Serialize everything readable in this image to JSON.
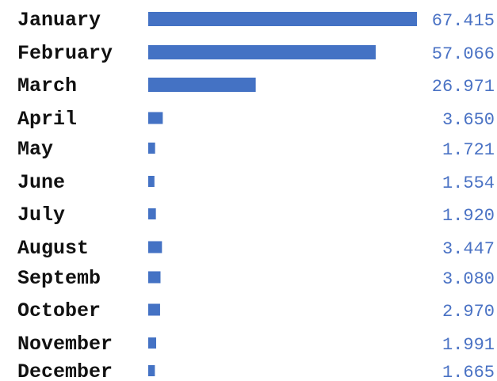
{
  "chart_data": {
    "type": "bar",
    "orientation": "horizontal",
    "categories": [
      "January",
      "February",
      "March",
      "April",
      "May",
      "June",
      "July",
      "August",
      "Septemb",
      "October",
      "November",
      "December"
    ],
    "values": [
      67.415,
      57.066,
      26.971,
      3.65,
      1.721,
      1.554,
      1.92,
      3.447,
      3.08,
      2.97,
      1.991,
      1.665
    ],
    "value_labels": [
      "67.415",
      "57.066",
      "26.971",
      "3.650",
      "1.721",
      "1.554",
      "1.920",
      "3.447",
      "3.080",
      "2.970",
      "1.991",
      "1.665"
    ],
    "title": "",
    "xlabel": "",
    "ylabel": "",
    "xlim": [
      0,
      67.415
    ],
    "grid": false,
    "legend": "none",
    "bar_color": "#4472c4",
    "value_label_color": "#4a72c4"
  }
}
